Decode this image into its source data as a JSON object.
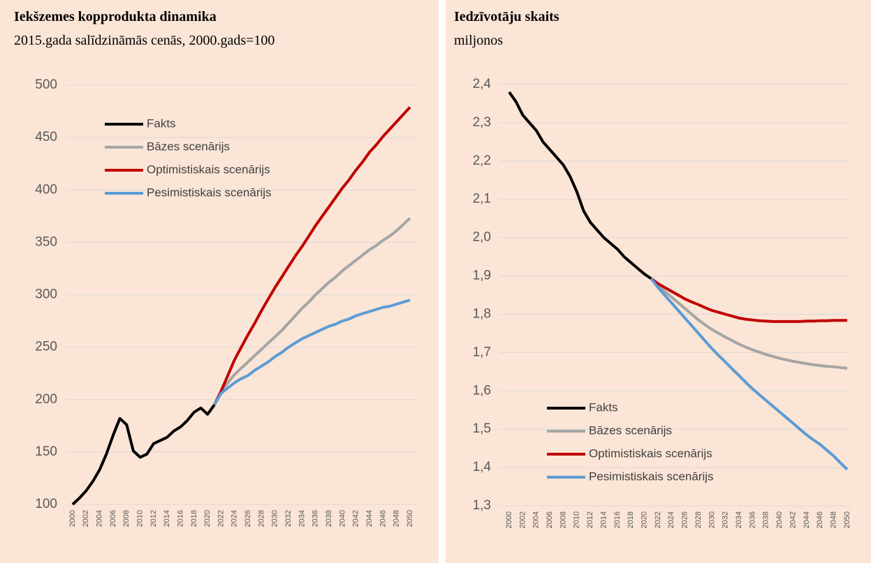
{
  "chart_data": [
    {
      "type": "line",
      "title": "Iekšzemes kopprodukta dinamika",
      "subtitle": "2015.gada salīdzināmās cenās, 2000.gads=100",
      "x": [
        2000,
        2001,
        2002,
        2003,
        2004,
        2005,
        2006,
        2007,
        2008,
        2009,
        2010,
        2011,
        2012,
        2013,
        2014,
        2015,
        2016,
        2017,
        2018,
        2019,
        2020,
        2021,
        2022,
        2023,
        2024,
        2025,
        2026,
        2027,
        2028,
        2029,
        2030,
        2031,
        2032,
        2033,
        2034,
        2035,
        2036,
        2037,
        2038,
        2039,
        2040,
        2041,
        2042,
        2043,
        2044,
        2045,
        2046,
        2047,
        2048,
        2049,
        2050
      ],
      "xlim": [
        2000,
        2050
      ],
      "xticks": [
        2000,
        2002,
        2004,
        2006,
        2008,
        2010,
        2012,
        2014,
        2016,
        2018,
        2020,
        2022,
        2024,
        2026,
        2028,
        2030,
        2032,
        2034,
        2036,
        2038,
        2040,
        2042,
        2044,
        2046,
        2048,
        2050
      ],
      "ylim": [
        100,
        500
      ],
      "yticks": [
        100,
        150,
        200,
        250,
        300,
        350,
        400,
        450,
        500
      ],
      "grid": true,
      "legend": "upper left",
      "series": [
        {
          "name": "Fakts",
          "color": "#000000",
          "values": [
            100,
            106,
            113,
            122,
            133,
            148,
            166,
            182,
            176,
            151,
            145,
            148,
            158,
            161,
            164,
            170,
            174,
            180,
            188,
            192,
            186,
            195,
            null,
            null,
            null,
            null,
            null,
            null,
            null,
            null,
            null,
            null,
            null,
            null,
            null,
            null,
            null,
            null,
            null,
            null,
            null,
            null,
            null,
            null,
            null,
            null,
            null,
            null,
            null,
            null,
            null
          ]
        },
        {
          "name": "Bāzes scenārijs",
          "color": "#a5a5a5",
          "values": [
            null,
            null,
            null,
            null,
            null,
            null,
            null,
            null,
            null,
            null,
            null,
            null,
            null,
            null,
            null,
            null,
            null,
            null,
            null,
            null,
            null,
            195,
            208,
            216,
            224,
            230,
            236,
            242,
            248,
            254,
            260,
            266,
            273,
            280,
            287,
            293,
            300,
            306,
            312,
            317,
            323,
            328,
            333,
            338,
            343,
            347,
            352,
            356,
            361,
            367,
            373
          ]
        },
        {
          "name": "Optimistiskais scenārijs",
          "color": "#c00000",
          "values": [
            null,
            null,
            null,
            null,
            null,
            null,
            null,
            null,
            null,
            null,
            null,
            null,
            null,
            null,
            null,
            null,
            null,
            null,
            null,
            null,
            null,
            195,
            208,
            223,
            238,
            250,
            262,
            273,
            285,
            296,
            307,
            317,
            327,
            337,
            346,
            356,
            366,
            375,
            384,
            393,
            402,
            410,
            419,
            427,
            436,
            443,
            451,
            458,
            465,
            472,
            479
          ]
        },
        {
          "name": "Pesimistiskais scenārijs",
          "color": "#5b9bd5",
          "values": [
            null,
            null,
            null,
            null,
            null,
            null,
            null,
            null,
            null,
            null,
            null,
            null,
            null,
            null,
            null,
            null,
            null,
            null,
            null,
            null,
            null,
            195,
            206,
            211,
            216,
            220,
            223,
            228,
            232,
            236,
            241,
            245,
            250,
            254,
            258,
            261,
            264,
            267,
            270,
            272,
            275,
            277,
            280,
            282,
            284,
            286,
            288,
            289,
            291,
            293,
            295
          ]
        }
      ]
    },
    {
      "type": "line",
      "title": "Iedzīvotāju skaits",
      "subtitle": "miljonos",
      "x": [
        2000,
        2001,
        2002,
        2003,
        2004,
        2005,
        2006,
        2007,
        2008,
        2009,
        2010,
        2011,
        2012,
        2013,
        2014,
        2015,
        2016,
        2017,
        2018,
        2019,
        2020,
        2021,
        2022,
        2023,
        2024,
        2025,
        2026,
        2027,
        2028,
        2029,
        2030,
        2031,
        2032,
        2033,
        2034,
        2035,
        2036,
        2037,
        2038,
        2039,
        2040,
        2041,
        2042,
        2043,
        2044,
        2045,
        2046,
        2047,
        2048,
        2049,
        2050
      ],
      "xlim": [
        2000,
        2050
      ],
      "xticks": [
        2000,
        2002,
        2004,
        2006,
        2008,
        2010,
        2012,
        2014,
        2016,
        2018,
        2020,
        2022,
        2024,
        2026,
        2028,
        2030,
        2032,
        2034,
        2036,
        2038,
        2040,
        2042,
        2044,
        2046,
        2048,
        2050
      ],
      "ylim": [
        1.3,
        2.4
      ],
      "yticks": [
        {
          "value": 1.3,
          "label": "1,3"
        },
        {
          "value": 1.4,
          "label": "1,4"
        },
        {
          "value": 1.5,
          "label": "1,5"
        },
        {
          "value": 1.6,
          "label": "1,6"
        },
        {
          "value": 1.7,
          "label": "1,7"
        },
        {
          "value": 1.8,
          "label": "1,8"
        },
        {
          "value": 1.9,
          "label": "1,9"
        },
        {
          "value": 2.0,
          "label": "2,0"
        },
        {
          "value": 2.1,
          "label": "2,1"
        },
        {
          "value": 2.2,
          "label": "2,2"
        },
        {
          "value": 2.3,
          "label": "2,3"
        },
        {
          "value": 2.4,
          "label": "2,4"
        }
      ],
      "grid": true,
      "legend": "lower left",
      "series": [
        {
          "name": "Fakts",
          "color": "#000000",
          "values": [
            2.38,
            2.355,
            2.32,
            2.3,
            2.28,
            2.25,
            2.23,
            2.21,
            2.19,
            2.16,
            2.12,
            2.07,
            2.04,
            2.02,
            2.0,
            1.985,
            1.97,
            1.95,
            1.935,
            1.92,
            1.905,
            1.893,
            null,
            null,
            null,
            null,
            null,
            null,
            null,
            null,
            null,
            null,
            null,
            null,
            null,
            null,
            null,
            null,
            null,
            null,
            null,
            null,
            null,
            null,
            null,
            null,
            null,
            null,
            null,
            null,
            null
          ]
        },
        {
          "name": "Bāzes scenārijs",
          "color": "#a5a5a5",
          "values": [
            null,
            null,
            null,
            null,
            null,
            null,
            null,
            null,
            null,
            null,
            null,
            null,
            null,
            null,
            null,
            null,
            null,
            null,
            null,
            null,
            null,
            1.893,
            1.875,
            1.86,
            1.845,
            1.83,
            1.815,
            1.8,
            1.785,
            1.772,
            1.76,
            1.75,
            1.74,
            1.731,
            1.722,
            1.714,
            1.707,
            1.701,
            1.695,
            1.69,
            1.685,
            1.681,
            1.677,
            1.674,
            1.671,
            1.668,
            1.666,
            1.664,
            1.663,
            1.661,
            1.659
          ]
        },
        {
          "name": "Optimistiskais scenārijs",
          "color": "#c00000",
          "values": [
            null,
            null,
            null,
            null,
            null,
            null,
            null,
            null,
            null,
            null,
            null,
            null,
            null,
            null,
            null,
            null,
            null,
            null,
            null,
            null,
            null,
            1.893,
            1.88,
            1.87,
            1.86,
            1.85,
            1.84,
            1.832,
            1.825,
            1.817,
            1.81,
            1.805,
            1.8,
            1.795,
            1.79,
            1.787,
            1.785,
            1.783,
            1.782,
            1.781,
            1.781,
            1.781,
            1.781,
            1.781,
            1.782,
            1.782,
            1.783,
            1.783,
            1.784,
            1.784,
            1.784
          ]
        },
        {
          "name": "Pesimistiskais scenārijs",
          "color": "#5b9bd5",
          "values": [
            null,
            null,
            null,
            null,
            null,
            null,
            null,
            null,
            null,
            null,
            null,
            null,
            null,
            null,
            null,
            null,
            null,
            null,
            null,
            null,
            null,
            1.893,
            1.87,
            1.85,
            1.83,
            1.81,
            1.79,
            1.77,
            1.75,
            1.73,
            1.71,
            1.692,
            1.675,
            1.657,
            1.64,
            1.622,
            1.605,
            1.59,
            1.575,
            1.56,
            1.545,
            1.53,
            1.515,
            1.5,
            1.485,
            1.472,
            1.46,
            1.445,
            1.43,
            1.412,
            1.395
          ]
        }
      ]
    }
  ]
}
